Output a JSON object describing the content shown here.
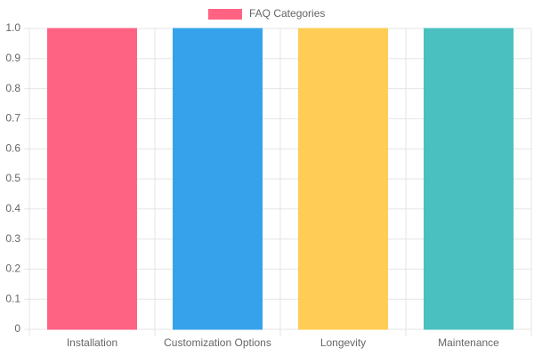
{
  "chart_data": {
    "type": "bar",
    "categories": [
      "Installation",
      "Customization Options",
      "Longevity",
      "Maintenance"
    ],
    "series": [
      {
        "name": "FAQ Categories",
        "colors": [
          "#ff6384",
          "#36a2eb",
          "#ffcd56",
          "#4bc0c0"
        ],
        "values": [
          1,
          1,
          1,
          1
        ]
      }
    ],
    "ylim": [
      0,
      1
    ],
    "yticks": [
      0,
      0.1,
      0.2,
      0.3,
      0.4,
      0.5,
      0.6,
      0.7,
      0.8,
      0.9,
      {
        "value": 1,
        "label": "1.0"
      }
    ],
    "grid": true,
    "legend": "top"
  }
}
